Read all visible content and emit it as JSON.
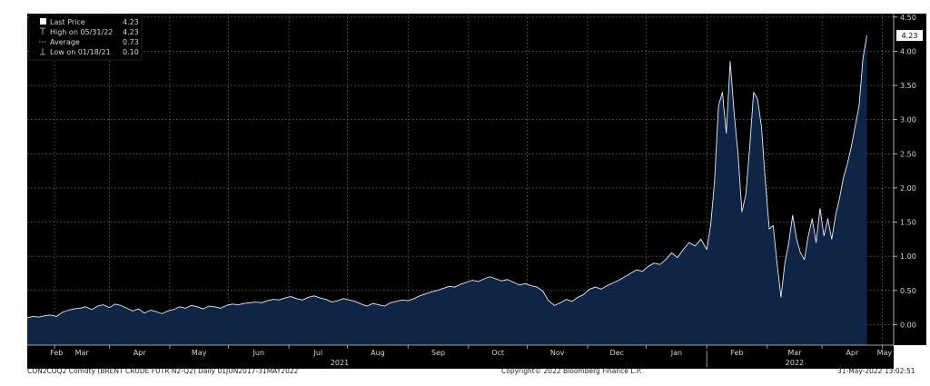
{
  "chart_data": {
    "type": "area",
    "colors": {
      "background": "#000000",
      "fill": "#0f2545",
      "line": "#e8edf5",
      "grid": "#8a8a8a",
      "axis_text": "#d6d6d6",
      "last_price_box": "#ffffff"
    },
    "legend": {
      "placement": "top-left",
      "entries": [
        {
          "label": "Last Price",
          "value": "4.23",
          "icon": "filled-square-icon"
        },
        {
          "label": "High on 05/31/22",
          "value": "4.23",
          "icon": "high-marker-icon"
        },
        {
          "label": "Average",
          "value": "0.73",
          "icon": "average-marker-icon"
        },
        {
          "label": "Low on 01/18/21",
          "value": "0.10",
          "icon": "low-marker-icon"
        }
      ]
    },
    "last_value_label": "4.23",
    "y_ticks": [
      "4.50",
      "4.00",
      "3.50",
      "3.00",
      "2.50",
      "2.00",
      "1.50",
      "1.00",
      "0.50",
      "0.00"
    ],
    "ylim": [
      -0.3,
      4.55
    ],
    "x_ticks": [
      "Feb",
      "Mar",
      "Apr",
      "May",
      "Jun",
      "Jul",
      "Aug",
      "Sep",
      "Oct",
      "Nov",
      "Dec",
      "Jan",
      "Feb",
      "Mar",
      "Apr",
      "May"
    ],
    "year_labels": [
      "2021",
      "2022"
    ],
    "grid": true,
    "series": [
      {
        "values": [
          [
            0,
            0.1
          ],
          [
            3,
            0.12
          ],
          [
            6,
            0.11
          ],
          [
            9,
            0.13
          ],
          [
            12,
            0.14
          ],
          [
            15,
            0.12
          ],
          [
            18,
            0.18
          ],
          [
            21,
            0.21
          ],
          [
            24,
            0.23
          ],
          [
            27,
            0.24
          ],
          [
            30,
            0.26
          ],
          [
            33,
            0.22
          ],
          [
            36,
            0.27
          ],
          [
            39,
            0.29
          ],
          [
            42,
            0.25
          ],
          [
            45,
            0.3
          ],
          [
            48,
            0.28
          ],
          [
            51,
            0.24
          ],
          [
            54,
            0.2
          ],
          [
            57,
            0.23
          ],
          [
            60,
            0.17
          ],
          [
            63,
            0.21
          ],
          [
            66,
            0.19
          ],
          [
            69,
            0.16
          ],
          [
            72,
            0.2
          ],
          [
            75,
            0.22
          ],
          [
            78,
            0.26
          ],
          [
            81,
            0.24
          ],
          [
            84,
            0.28
          ],
          [
            87,
            0.26
          ],
          [
            90,
            0.23
          ],
          [
            93,
            0.27
          ],
          [
            96,
            0.26
          ],
          [
            99,
            0.24
          ],
          [
            102,
            0.28
          ],
          [
            105,
            0.3
          ],
          [
            108,
            0.29
          ],
          [
            111,
            0.31
          ],
          [
            114,
            0.32
          ],
          [
            117,
            0.33
          ],
          [
            120,
            0.32
          ],
          [
            123,
            0.35
          ],
          [
            126,
            0.37
          ],
          [
            129,
            0.36
          ],
          [
            132,
            0.39
          ],
          [
            135,
            0.41
          ],
          [
            138,
            0.38
          ],
          [
            141,
            0.36
          ],
          [
            144,
            0.4
          ],
          [
            147,
            0.42
          ],
          [
            150,
            0.39
          ],
          [
            153,
            0.37
          ],
          [
            156,
            0.33
          ],
          [
            159,
            0.35
          ],
          [
            162,
            0.38
          ],
          [
            165,
            0.36
          ],
          [
            168,
            0.34
          ],
          [
            171,
            0.3
          ],
          [
            174,
            0.27
          ],
          [
            177,
            0.31
          ],
          [
            180,
            0.29
          ],
          [
            183,
            0.27
          ],
          [
            186,
            0.32
          ],
          [
            189,
            0.34
          ],
          [
            192,
            0.36
          ],
          [
            195,
            0.35
          ],
          [
            198,
            0.38
          ],
          [
            201,
            0.42
          ],
          [
            204,
            0.45
          ],
          [
            207,
            0.48
          ],
          [
            210,
            0.5
          ],
          [
            213,
            0.53
          ],
          [
            216,
            0.56
          ],
          [
            219,
            0.55
          ],
          [
            222,
            0.59
          ],
          [
            225,
            0.62
          ],
          [
            228,
            0.65
          ],
          [
            231,
            0.63
          ],
          [
            234,
            0.67
          ],
          [
            237,
            0.7
          ],
          [
            240,
            0.67
          ],
          [
            243,
            0.64
          ],
          [
            246,
            0.66
          ],
          [
            249,
            0.62
          ],
          [
            252,
            0.58
          ],
          [
            255,
            0.6
          ],
          [
            258,
            0.57
          ],
          [
            261,
            0.55
          ],
          [
            264,
            0.49
          ],
          [
            267,
            0.35
          ],
          [
            270,
            0.28
          ],
          [
            273,
            0.32
          ],
          [
            276,
            0.37
          ],
          [
            279,
            0.34
          ],
          [
            282,
            0.4
          ],
          [
            285,
            0.44
          ],
          [
            288,
            0.52
          ],
          [
            291,
            0.55
          ],
          [
            294,
            0.52
          ],
          [
            297,
            0.57
          ],
          [
            300,
            0.61
          ],
          [
            303,
            0.65
          ],
          [
            306,
            0.7
          ],
          [
            309,
            0.75
          ],
          [
            312,
            0.8
          ],
          [
            315,
            0.78
          ],
          [
            318,
            0.85
          ],
          [
            321,
            0.9
          ],
          [
            324,
            0.88
          ],
          [
            327,
            0.95
          ],
          [
            330,
            1.05
          ],
          [
            333,
            0.98
          ],
          [
            336,
            1.1
          ],
          [
            339,
            1.2
          ],
          [
            342,
            1.15
          ],
          [
            345,
            1.25
          ],
          [
            348,
            1.1
          ],
          [
            350,
            1.45
          ],
          [
            352,
            2.1
          ],
          [
            354,
            3.2
          ],
          [
            356,
            3.4
          ],
          [
            358,
            2.8
          ],
          [
            360,
            3.85
          ],
          [
            362,
            3.1
          ],
          [
            364,
            2.5
          ],
          [
            366,
            1.65
          ],
          [
            368,
            1.9
          ],
          [
            370,
            2.6
          ],
          [
            372,
            3.4
          ],
          [
            374,
            3.3
          ],
          [
            376,
            2.9
          ],
          [
            378,
            2.1
          ],
          [
            380,
            1.4
          ],
          [
            382,
            1.45
          ],
          [
            384,
            0.9
          ],
          [
            386,
            0.4
          ],
          [
            388,
            0.9
          ],
          [
            390,
            1.2
          ],
          [
            392,
            1.6
          ],
          [
            394,
            1.25
          ],
          [
            396,
            1.05
          ],
          [
            398,
            0.95
          ],
          [
            400,
            1.3
          ],
          [
            402,
            1.55
          ],
          [
            404,
            1.2
          ],
          [
            406,
            1.7
          ],
          [
            408,
            1.3
          ],
          [
            410,
            1.55
          ],
          [
            412,
            1.25
          ],
          [
            414,
            1.6
          ],
          [
            416,
            1.85
          ],
          [
            418,
            2.15
          ],
          [
            420,
            2.35
          ],
          [
            422,
            2.6
          ],
          [
            424,
            2.9
          ],
          [
            426,
            3.2
          ],
          [
            428,
            3.9
          ],
          [
            430,
            4.23
          ]
        ]
      }
    ]
  },
  "footer": {
    "left": "CON2COQ2 Comdty (BRENT CRUDE FUTR  N2-Q2)  Daily 01JUN2017-31MAY2022",
    "center": "Copyright© 2022 Bloomberg Finance L.P.",
    "right": "31-May-2022 13:02:51"
  }
}
